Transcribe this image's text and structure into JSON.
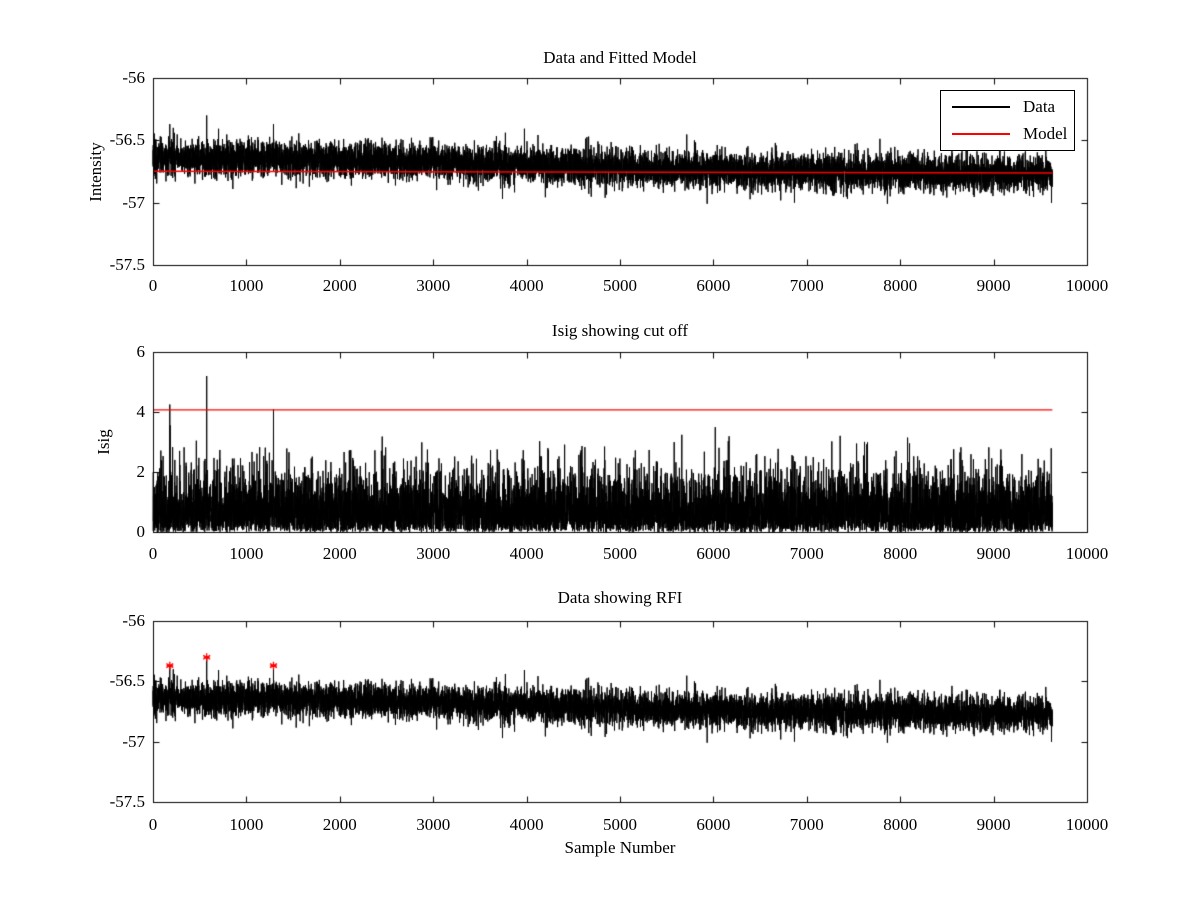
{
  "figure": {
    "background": "#ffffff",
    "axes_color": "#000000",
    "data_color": "#000000",
    "highlight_color": "#ff0000"
  },
  "chart_data": [
    {
      "type": "line",
      "title": "Data and Fitted Model",
      "xlabel": "",
      "ylabel": "Intensity",
      "xlim": [
        0,
        10000
      ],
      "ylim": [
        -57.5,
        -56
      ],
      "xticks": [
        0,
        1000,
        2000,
        3000,
        4000,
        5000,
        6000,
        7000,
        8000,
        9000,
        10000
      ],
      "xtick_labels": [
        "0",
        "1000",
        "2000",
        "3000",
        "4000",
        "5000",
        "6000",
        "7000",
        "8000",
        "9000",
        "10000"
      ],
      "yticks": [
        -56,
        -56.5,
        -57,
        -57.5
      ],
      "ytick_labels": [
        "-56",
        "-56.5",
        "-57",
        "-57.5"
      ],
      "grid": false,
      "box": true,
      "legend": {
        "position": "northeast",
        "entries": [
          {
            "label": "Data",
            "color": "#000000"
          },
          {
            "label": "Model",
            "color": "#ff0000"
          }
        ]
      },
      "series": [
        {
          "name": "Data",
          "color": "#000000",
          "style": "noise-line",
          "n_samples": 9630,
          "mean_start": -56.64,
          "mean_end": -56.78,
          "std": 0.073,
          "spikes": [
            {
              "x": 180,
              "y": -56.37
            },
            {
              "x": 575,
              "y": -56.3
            },
            {
              "x": 1290,
              "y": -56.37
            }
          ]
        },
        {
          "name": "Model",
          "color": "#ff0000",
          "style": "fit-line",
          "y_start": -56.748,
          "y_end": -56.762
        }
      ]
    },
    {
      "type": "line",
      "title": "Isig showing cut off",
      "xlabel": "",
      "ylabel": "Isig",
      "xlim": [
        0,
        10000
      ],
      "ylim": [
        0,
        6
      ],
      "xticks": [
        0,
        1000,
        2000,
        3000,
        4000,
        5000,
        6000,
        7000,
        8000,
        9000,
        10000
      ],
      "xtick_labels": [
        "0",
        "1000",
        "2000",
        "3000",
        "4000",
        "5000",
        "6000",
        "7000",
        "8000",
        "9000",
        "10000"
      ],
      "yticks": [
        6,
        4,
        2,
        0
      ],
      "ytick_labels": [
        "6",
        "4",
        "2",
        "0"
      ],
      "grid": false,
      "box": true,
      "series": [
        {
          "name": "Isig",
          "color": "#000000",
          "style": "noise-line",
          "n_samples": 9630,
          "distribution": "half-gaussian",
          "scale": 0.95,
          "spikes": [
            {
              "x": 180,
              "y": 4.25
            },
            {
              "x": 575,
              "y": 5.2
            },
            {
              "x": 1290,
              "y": 4.1
            }
          ]
        },
        {
          "name": "Cut off",
          "color": "#ff0000",
          "style": "hline",
          "y": 4.07
        }
      ]
    },
    {
      "type": "line",
      "title": "Data showing RFI",
      "xlabel": "Sample Number",
      "ylabel": "",
      "xlim": [
        0,
        10000
      ],
      "ylim": [
        -57.5,
        -56
      ],
      "xticks": [
        0,
        1000,
        2000,
        3000,
        4000,
        5000,
        6000,
        7000,
        8000,
        9000,
        10000
      ],
      "xtick_labels": [
        "0",
        "1000",
        "2000",
        "3000",
        "4000",
        "5000",
        "6000",
        "7000",
        "8000",
        "9000",
        "10000"
      ],
      "yticks": [
        -56,
        -56.5,
        -57,
        -57.5
      ],
      "ytick_labels": [
        "-56",
        "-56.5",
        "-57",
        "-57.5"
      ],
      "grid": false,
      "box": true,
      "series": [
        {
          "name": "Data",
          "color": "#000000",
          "style": "noise-line",
          "n_samples": 9630,
          "mean_start": -56.64,
          "mean_end": -56.78,
          "std": 0.073,
          "spikes": [
            {
              "x": 180,
              "y": -56.37
            },
            {
              "x": 575,
              "y": -56.3
            },
            {
              "x": 1290,
              "y": -56.37
            }
          ]
        },
        {
          "name": "RFI markers",
          "color": "#ff0000",
          "style": "markers",
          "marker": "asterisk",
          "points": [
            {
              "x": 180,
              "y": -56.37
            },
            {
              "x": 575,
              "y": -56.3
            },
            {
              "x": 1290,
              "y": -56.37
            }
          ]
        }
      ]
    }
  ]
}
